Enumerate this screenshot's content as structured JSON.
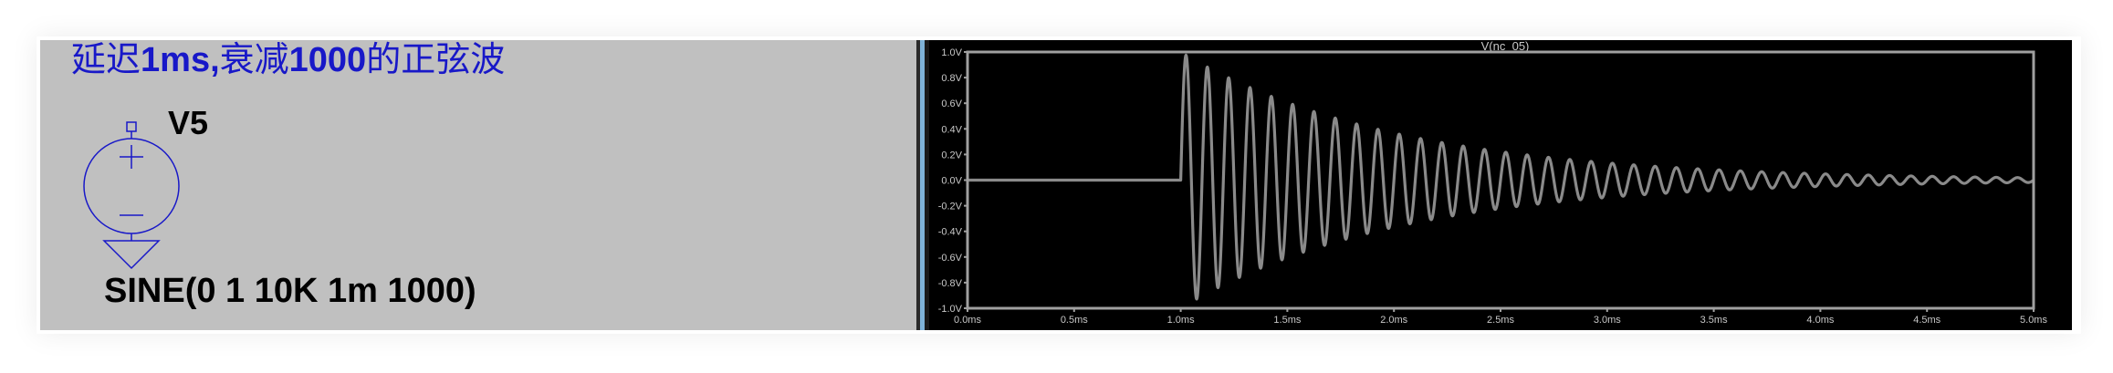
{
  "schematic": {
    "heading_prefix": "延迟",
    "heading_delay": "1ms,",
    "heading_mid": "衰减",
    "heading_damping": "1000",
    "heading_suffix": "的正弦波",
    "source_name": "V5",
    "source_value": "SINE(0 1 10K 1m 1000)",
    "colors": {
      "background": "#c0c0c0",
      "wire": "#1818c8",
      "text": "#000000"
    }
  },
  "chart_data": {
    "type": "line",
    "title": "V(nc_05)",
    "xlabel": "",
    "ylabel": "",
    "xlim": [
      0,
      5.0
    ],
    "ylim": [
      -1.0,
      1.0
    ],
    "grid": false,
    "x_tick_labels": [
      "0.0ms",
      "0.5ms",
      "1.0ms",
      "1.5ms",
      "2.0ms",
      "2.5ms",
      "3.0ms",
      "3.5ms",
      "4.0ms",
      "4.5ms",
      "5.0ms"
    ],
    "y_tick_labels": [
      "1.0V",
      "0.8V",
      "0.6V",
      "0.4V",
      "0.2V",
      "0.0V",
      "-0.2V",
      "-0.4V",
      "-0.6V",
      "-0.8V",
      "-1.0V"
    ],
    "series": [
      {
        "name": "V(nc_05)",
        "color": "#8a8a8a",
        "function": "sine",
        "offset": 0,
        "amplitude": 1,
        "frequency_khz": 10,
        "delay_ms": 1,
        "damping_per_s": 1000,
        "x_end_ms": 5.0
      }
    ],
    "colors": {
      "background": "#000000",
      "frame": "#a0a0a0",
      "text": "#c8c8c8"
    }
  }
}
